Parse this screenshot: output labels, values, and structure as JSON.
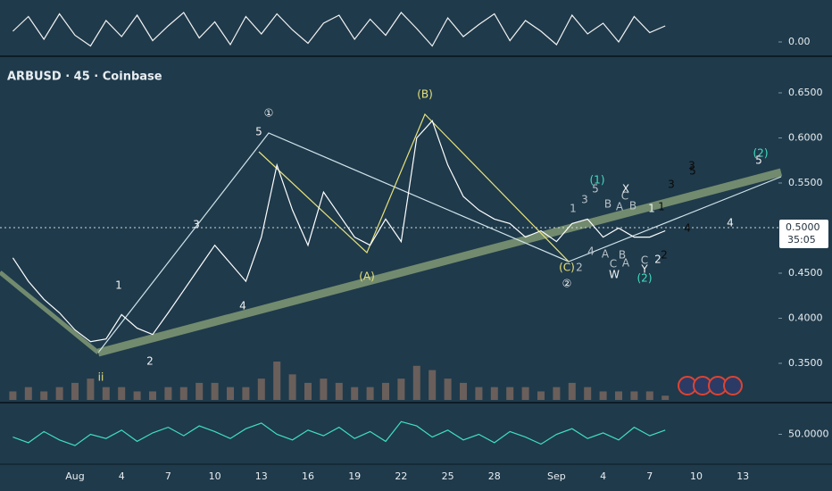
{
  "chart_data": [
    {
      "type": "line",
      "ylim": [
        -1,
        3
      ],
      "yticks": [
        {
          "value": 0,
          "label": "0.00"
        }
      ],
      "series": [
        {
          "color": "#f2f2f2",
          "values": [
            0.8,
            1.9,
            0.2,
            2.1,
            0.5,
            -0.3,
            1.6,
            0.4,
            2.0,
            0.1,
            1.2,
            2.2,
            0.3,
            1.5,
            -0.2,
            1.9,
            0.6,
            2.1,
            0.9,
            -0.1,
            1.4,
            2.0,
            0.2,
            1.7,
            0.5,
            2.2,
            1.0,
            -0.3,
            1.8,
            0.4,
            1.3,
            2.1,
            0.1,
            1.6,
            0.8,
            -0.2,
            2.0,
            0.6,
            1.4,
            0.0,
            1.9,
            0.7,
            1.2,
            null,
            null,
            null,
            null,
            null,
            null
          ]
        }
      ]
    },
    {
      "type": "line",
      "title": "ARBUSD · 45 · Coinbase",
      "categories": [
        null,
        null,
        null,
        null,
        "Aug",
        null,
        null,
        "4",
        null,
        null,
        "7",
        null,
        null,
        "10",
        null,
        null,
        "13",
        null,
        null,
        "16",
        null,
        null,
        "19",
        null,
        null,
        "22",
        null,
        null,
        "25",
        null,
        null,
        "28",
        null,
        null,
        null,
        "Sep",
        null,
        null,
        "4",
        null,
        null,
        "7",
        null,
        null,
        "10",
        null,
        null,
        "13",
        null
      ],
      "series": [
        {
          "color": "#ffffff",
          "values": [
            0.467,
            0.441,
            0.421,
            0.406,
            0.387,
            0.374,
            0.377,
            0.404,
            0.389,
            0.382,
            0.406,
            0.431,
            0.456,
            0.481,
            0.461,
            0.441,
            0.49,
            0.57,
            0.52,
            0.481,
            0.54,
            0.515,
            0.49,
            0.481,
            0.51,
            0.485,
            0.6,
            0.619,
            0.57,
            0.535,
            0.52,
            0.51,
            0.505,
            0.49,
            0.497,
            0.485,
            0.505,
            0.51,
            0.49,
            0.5,
            0.49,
            0.49,
            0.497,
            null,
            null,
            null,
            null,
            null,
            null
          ]
        }
      ],
      "ylim": [
        0.3074,
        0.6886
      ],
      "yticks": [
        {
          "value": 0.35,
          "label": "0.3500"
        },
        {
          "value": 0.4,
          "label": "0.4000"
        },
        {
          "value": 0.45,
          "label": "0.4500"
        },
        {
          "value": 0.55,
          "label": "0.5500"
        },
        {
          "value": 0.6,
          "label": "0.6000"
        },
        {
          "value": 0.65,
          "label": "0.6500"
        }
      ],
      "last_price": {
        "value": 0.5,
        "label": "0.5000"
      },
      "countdown": "35:05",
      "annotations": [
        "①",
        "5",
        "3",
        "1",
        "4",
        "2",
        "ii",
        "(B)",
        "(A)",
        "(C)",
        "②",
        "(1)",
        "(2)",
        "(2)",
        "5",
        "1",
        "3",
        "5",
        "B",
        "A",
        "C",
        "B",
        "4",
        "A",
        "B",
        "C",
        "A",
        "2",
        "C",
        "X",
        "W",
        "Y",
        "1",
        "2",
        "3",
        "1",
        "4",
        "2",
        "3",
        "5",
        "4"
      ]
    },
    {
      "type": "bar",
      "color": "#8a6f63",
      "values": [
        2,
        3,
        2,
        3,
        4,
        5,
        3,
        3,
        2,
        2,
        3,
        3,
        4,
        4,
        3,
        3,
        5,
        9,
        6,
        4,
        5,
        4,
        3,
        3,
        4,
        5,
        8,
        7,
        5,
        4,
        3,
        3,
        3,
        3,
        2,
        3,
        4,
        3,
        2,
        2,
        2,
        2,
        1,
        null,
        null,
        null,
        null,
        null,
        null
      ]
    },
    {
      "type": "line",
      "ylim": [
        30,
        70
      ],
      "yticks": [
        {
          "value": 50,
          "label": "50.0000"
        }
      ],
      "series": [
        {
          "color": "#3fe0c0",
          "values": [
            48,
            44,
            52,
            46,
            42,
            50,
            47,
            53,
            45,
            51,
            55,
            49,
            56,
            52,
            47,
            54,
            58,
            50,
            46,
            53,
            49,
            55,
            47,
            52,
            45,
            59,
            56,
            48,
            53,
            46,
            50,
            44,
            52,
            48,
            43,
            50,
            54,
            47,
            51,
            46,
            55,
            49,
            53,
            null,
            null,
            null,
            null,
            null,
            null
          ]
        }
      ]
    }
  ]
}
